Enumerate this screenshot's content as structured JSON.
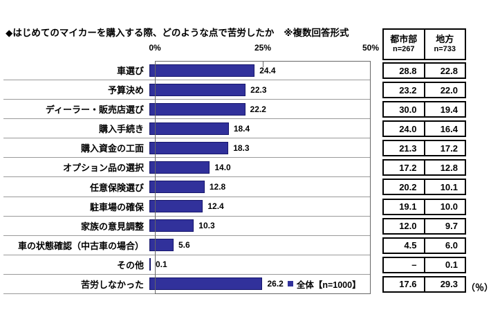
{
  "title": "◆はじめてのマイカーを購入する際、どのような点で苦労したか",
  "title_note": "※複数回答形式",
  "axis_ticks": [
    "0%",
    "25%",
    "50%"
  ],
  "legend": {
    "label": "全体【n=1000】",
    "color": "#31319b"
  },
  "unit_label": "（％）",
  "stat_table": {
    "columns": [
      {
        "name": "都市部",
        "n_label": "n=267"
      },
      {
        "name": "地方",
        "n_label": "n=733"
      }
    ],
    "rows": [
      {
        "urban": "28.8",
        "rural": "22.8"
      },
      {
        "urban": "23.2",
        "rural": "22.0"
      },
      {
        "urban": "30.0",
        "rural": "19.4"
      },
      {
        "urban": "24.0",
        "rural": "16.4"
      },
      {
        "urban": "21.3",
        "rural": "17.2"
      },
      {
        "urban": "17.2",
        "rural": "12.8"
      },
      {
        "urban": "20.2",
        "rural": "10.1"
      },
      {
        "urban": "19.1",
        "rural": "10.0"
      },
      {
        "urban": "12.0",
        "rural": "9.7"
      },
      {
        "urban": "4.5",
        "rural": "6.0"
      },
      {
        "urban": "–",
        "rural": "0.1"
      },
      {
        "urban": "17.6",
        "rural": "29.3"
      }
    ]
  },
  "chart_data": {
    "type": "bar",
    "orientation": "horizontal",
    "title": "はじめてのマイカーを購入する際、どのような点で苦労したか（複数回答形式）",
    "xlim": [
      0,
      50
    ],
    "x_ticks": [
      0,
      25,
      50
    ],
    "bar_color": "#31319b",
    "unit": "%",
    "categories": [
      "車選び",
      "予算決め",
      "ディーラー・販売店選び",
      "購入手続き",
      "購入資金の工面",
      "オプション品の選択",
      "任意保険選び",
      "駐車場の確保",
      "家族の意見調整",
      "車の状態確認（中古車の場合）",
      "その他",
      "苦労しなかった"
    ],
    "series": [
      {
        "name": "全体【n=1000】",
        "values": [
          24.4,
          22.3,
          22.2,
          18.4,
          18.3,
          14.0,
          12.8,
          12.4,
          10.3,
          5.6,
          0.1,
          26.2
        ]
      },
      {
        "name": "都市部【n=267】",
        "values": [
          28.8,
          23.2,
          30.0,
          24.0,
          21.3,
          17.2,
          20.2,
          19.1,
          12.0,
          4.5,
          null,
          17.6
        ]
      },
      {
        "name": "地方【n=733】",
        "values": [
          22.8,
          22.0,
          19.4,
          16.4,
          17.2,
          12.8,
          10.1,
          10.0,
          9.7,
          6.0,
          0.1,
          29.3
        ]
      }
    ],
    "value_labels": [
      "24.4",
      "22.3",
      "22.2",
      "18.4",
      "18.3",
      "14.0",
      "12.8",
      "12.4",
      "10.3",
      "5.6",
      "0.1",
      "26.2"
    ]
  }
}
